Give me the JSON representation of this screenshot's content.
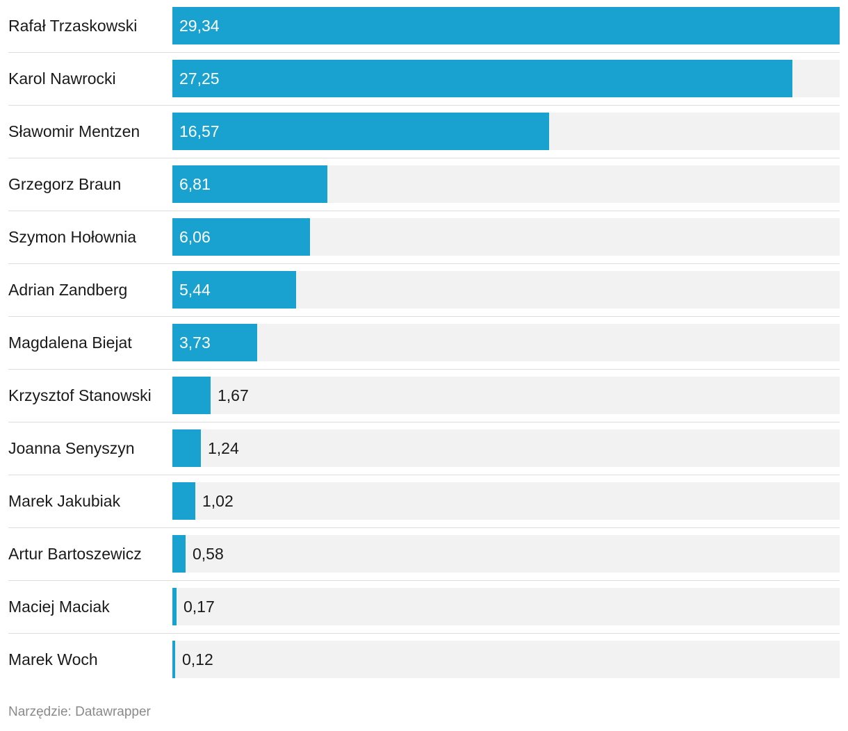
{
  "chart_data": {
    "type": "bar",
    "orientation": "horizontal",
    "categories": [
      "Rafał Trzaskowski",
      "Karol Nawrocki",
      "Sławomir Mentzen",
      "Grzegorz Braun",
      "Szymon Hołownia",
      "Adrian Zandberg",
      "Magdalena Biejat",
      "Krzysztof Stanowski",
      "Joanna Senyszyn",
      "Marek Jakubiak",
      "Artur Bartoszewicz",
      "Maciej Maciak",
      "Marek Woch"
    ],
    "values": [
      29.34,
      27.25,
      16.57,
      6.81,
      6.06,
      5.44,
      3.73,
      1.67,
      1.24,
      1.02,
      0.58,
      0.17,
      0.12
    ],
    "value_labels": [
      "29,34",
      "27,25",
      "16,57",
      "6,81",
      "6,06",
      "5,44",
      "3,73",
      "1,67",
      "1,24",
      "1,02",
      "0,58",
      "0,17",
      "0,12"
    ],
    "xlim": [
      0,
      29.34
    ],
    "bar_color": "#19a2cf",
    "track_color": "#f2f2f2",
    "grid": false,
    "legend": "none"
  },
  "footer": {
    "text": "Narzędzie: Datawrapper"
  }
}
